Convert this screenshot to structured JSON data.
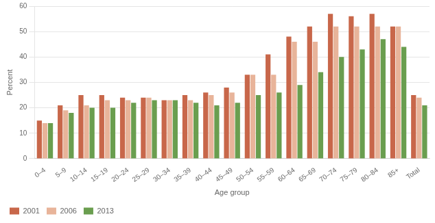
{
  "chart_data": {
    "type": "bar",
    "xlabel": "Age group",
    "ylabel": "Percent",
    "categories": [
      "0–4",
      "5–9",
      "10–14",
      "15–19",
      "20–24",
      "25–29",
      "30–34",
      "35–39",
      "40–44",
      "45–49",
      "50–54",
      "55–59",
      "60–64",
      "65–69",
      "70–74",
      "75–79",
      "80–84",
      "85+",
      "Total"
    ],
    "series": [
      {
        "name": "2001",
        "color": "#c8674a",
        "values": [
          15,
          21,
          25,
          25,
          24,
          24,
          23,
          25,
          26,
          28,
          33,
          41,
          48,
          52,
          57,
          56,
          57,
          52,
          25
        ]
      },
      {
        "name": "2006",
        "color": "#e8b49a",
        "values": [
          14,
          19,
          21,
          23,
          23,
          24,
          23,
          23,
          25,
          26,
          33,
          33,
          46,
          46,
          52,
          52,
          52,
          52,
          24
        ]
      },
      {
        "name": "2013",
        "color": "#6a9e4f",
        "values": [
          14,
          18,
          20,
          20,
          22,
          23,
          23,
          22,
          21,
          22,
          25,
          26,
          29,
          34,
          40,
          43,
          47,
          44,
          21
        ]
      }
    ],
    "ylim": [
      0,
      60
    ],
    "yticks": [
      0,
      10,
      20,
      30,
      40,
      50,
      60
    ],
    "grid": true,
    "legend": "bottom"
  }
}
